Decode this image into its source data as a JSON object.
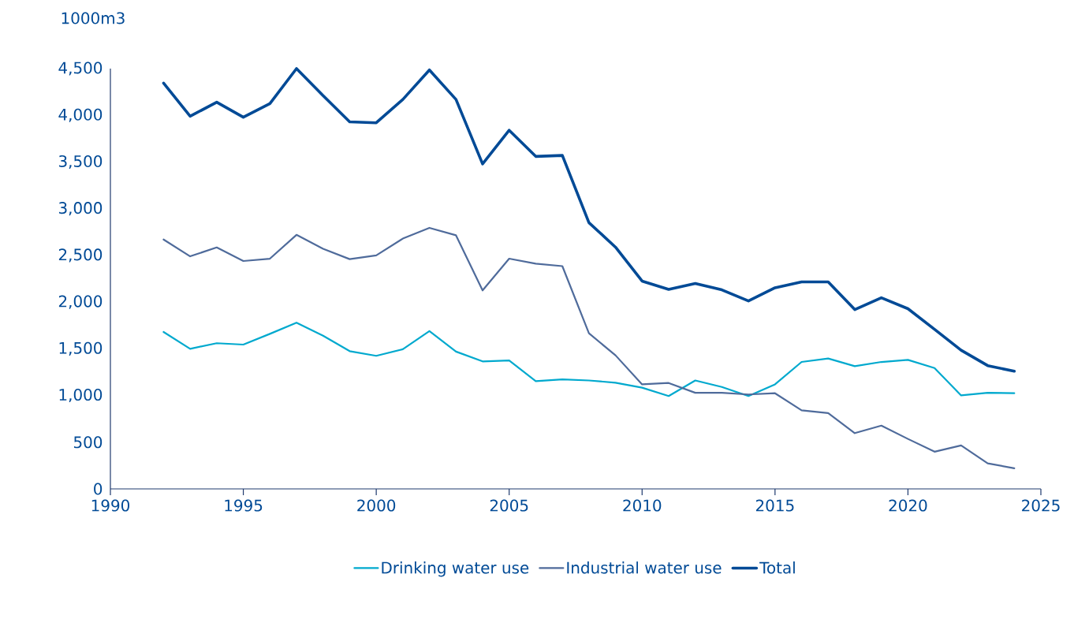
{
  "chart_data": {
    "type": "line",
    "ylabel": "1000m3",
    "x": [
      1992,
      1993,
      1994,
      1995,
      1996,
      1997,
      1998,
      1999,
      2000,
      2001,
      2002,
      2003,
      2004,
      2005,
      2006,
      2007,
      2008,
      2009,
      2010,
      2011,
      2012,
      2013,
      2014,
      2015,
      2016,
      2017,
      2018,
      2019,
      2020,
      2021,
      2022,
      2023,
      2024
    ],
    "series": [
      {
        "name": "Drinking water use",
        "color": "#00a9ce",
        "values": [
          1680,
          1500,
          1560,
          1545,
          1660,
          1780,
          1640,
          1475,
          1425,
          1495,
          1690,
          1470,
          1365,
          1375,
          1154,
          1172,
          1161,
          1137,
          1084,
          994,
          1161,
          1091,
          994,
          1119,
          1359,
          1396,
          1314,
          1359,
          1381,
          1294,
          1001,
          1029,
          1024
        ]
      },
      {
        "name": "Industrial water use",
        "color": "#4f6b9b",
        "values": [
          2670,
          2490,
          2585,
          2440,
          2465,
          2720,
          2570,
          2460,
          2500,
          2680,
          2795,
          2715,
          2125,
          2465,
          2411,
          2385,
          1666,
          1430,
          1119,
          1134,
          1029,
          1029,
          1011,
          1024,
          841,
          812,
          597,
          677,
          535,
          398,
          465,
          273,
          221
        ]
      },
      {
        "name": "Total",
        "color": "#004a96",
        "values": [
          4345,
          3990,
          4140,
          3980,
          4125,
          4500,
          4210,
          3930,
          3920,
          4170,
          4485,
          4170,
          3480,
          3840,
          3560,
          3570,
          2851,
          2588,
          2225,
          2136,
          2199,
          2131,
          2013,
          2153,
          2216,
          2216,
          1920,
          2047,
          1929,
          1709,
          1485,
          1320,
          1260
        ]
      }
    ],
    "xlim": [
      1990,
      2025
    ],
    "xticks": [
      1990,
      1995,
      2000,
      2005,
      2010,
      2015,
      2020,
      2025
    ],
    "ylim": [
      0,
      4500
    ],
    "yticks": [
      {
        "value": 0,
        "label": "0"
      },
      {
        "value": 500,
        "label": "500"
      },
      {
        "value": 1000,
        "label": "1,000"
      },
      {
        "value": 1500,
        "label": "1,500"
      },
      {
        "value": 2000,
        "label": "2,000"
      },
      {
        "value": 2500,
        "label": "2,500"
      },
      {
        "value": 3000,
        "label": "3,000"
      },
      {
        "value": 3500,
        "label": "3,500"
      },
      {
        "value": 4000,
        "label": "4,000"
      },
      {
        "value": 4500,
        "label": "4,500"
      }
    ],
    "grid": false,
    "legend": "bottom",
    "marker": "none",
    "line_style": "solid"
  }
}
